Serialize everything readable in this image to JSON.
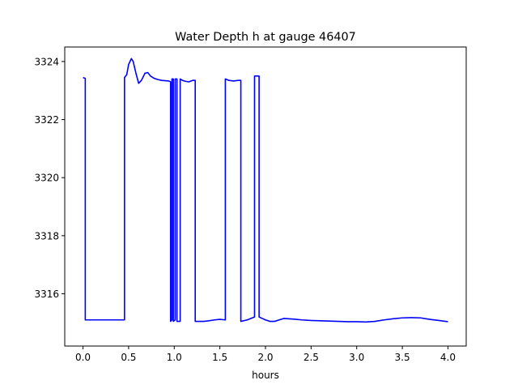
{
  "chart_data": {
    "type": "line",
    "title": "Water Depth h at gauge 46407",
    "xlabel": "hours",
    "ylabel": "",
    "xlim": [
      -0.2,
      4.2
    ],
    "ylim": [
      3314.2,
      3324.5
    ],
    "xticks": [
      0.0,
      0.5,
      1.0,
      1.5,
      2.0,
      2.5,
      3.0,
      3.5,
      4.0
    ],
    "xtick_labels": [
      "0.0",
      "0.5",
      "1.0",
      "1.5",
      "2.0",
      "2.5",
      "3.0",
      "3.5",
      "4.0"
    ],
    "yticks": [
      3316,
      3318,
      3320,
      3322,
      3324
    ],
    "ytick_labels": [
      "3316",
      "3318",
      "3320",
      "3322",
      "3324"
    ],
    "grid": false,
    "series": [
      {
        "color": "#0000ff",
        "x": [
          0.0,
          0.025,
          0.025,
          0.455,
          0.455,
          0.48,
          0.5,
          0.53,
          0.55,
          0.58,
          0.61,
          0.64,
          0.68,
          0.71,
          0.74,
          0.78,
          0.82,
          0.86,
          0.9,
          0.94,
          0.96,
          0.96,
          0.975,
          0.975,
          0.99,
          0.99,
          1.01,
          1.01,
          1.03,
          1.03,
          1.065,
          1.065,
          1.09,
          1.12,
          1.16,
          1.2,
          1.23,
          1.23,
          1.27,
          1.32,
          1.38,
          1.44,
          1.5,
          1.56,
          1.56,
          1.6,
          1.65,
          1.7,
          1.73,
          1.73,
          1.8,
          1.88,
          1.88,
          1.93,
          1.93,
          2.0,
          2.05,
          2.1,
          2.15,
          2.2,
          2.3,
          2.4,
          2.5,
          2.6,
          2.7,
          2.8,
          2.9,
          3.0,
          3.1,
          3.2,
          3.3,
          3.4,
          3.5,
          3.6,
          3.7,
          3.8,
          3.9,
          4.0
        ],
        "values": [
          3323.45,
          3323.42,
          3315.1,
          3315.1,
          3323.45,
          3323.55,
          3323.9,
          3324.1,
          3324.0,
          3323.6,
          3323.25,
          3323.35,
          3323.6,
          3323.62,
          3323.5,
          3323.42,
          3323.38,
          3323.35,
          3323.34,
          3323.33,
          3323.3,
          3315.05,
          3315.1,
          3323.4,
          3323.4,
          3315.05,
          3315.1,
          3323.4,
          3323.4,
          3315.05,
          3315.05,
          3323.4,
          3323.35,
          3323.32,
          3323.3,
          3323.35,
          3323.35,
          3315.05,
          3315.05,
          3315.05,
          3315.07,
          3315.1,
          3315.12,
          3315.1,
          3323.4,
          3323.35,
          3323.33,
          3323.35,
          3323.35,
          3315.05,
          3315.1,
          3315.2,
          3323.5,
          3323.5,
          3315.2,
          3315.1,
          3315.05,
          3315.05,
          3315.1,
          3315.15,
          3315.13,
          3315.1,
          3315.08,
          3315.07,
          3315.06,
          3315.05,
          3315.04,
          3315.04,
          3315.03,
          3315.05,
          3315.1,
          3315.14,
          3315.17,
          3315.18,
          3315.17,
          3315.12,
          3315.08,
          3315.04
        ]
      }
    ]
  }
}
